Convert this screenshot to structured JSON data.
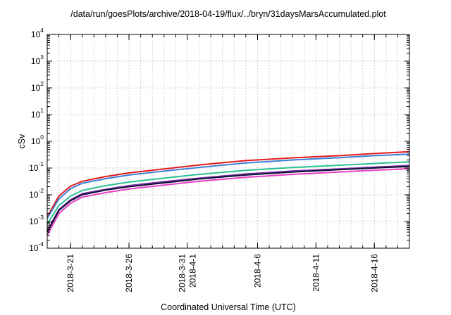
{
  "chart_data": {
    "type": "line",
    "title": "/data/run/goesPlots/archive/2018-04-19/flux/../bryn/31daysMarsAccumulated.plot",
    "xlabel": "Coordinated Universal Time (UTC)",
    "ylabel": "cSv",
    "yscale": "log",
    "ylim": [
      0.0001,
      10000
    ],
    "xlim": [
      "2018-03-19",
      "2018-04-19"
    ],
    "grid": true,
    "legend": "none",
    "y_ticks": [
      {
        "base": "10",
        "exp": "-4",
        "value": 0.0001
      },
      {
        "base": "10",
        "exp": "-3",
        "value": 0.001
      },
      {
        "base": "10",
        "exp": "-2",
        "value": 0.01
      },
      {
        "base": "10",
        "exp": "-1",
        "value": 0.1
      },
      {
        "base": "10",
        "exp": "0",
        "value": 1
      },
      {
        "base": "10",
        "exp": "1",
        "value": 10
      },
      {
        "base": "10",
        "exp": "2",
        "value": 100
      },
      {
        "base": "10",
        "exp": "3",
        "value": 1000
      },
      {
        "base": "10",
        "exp": "4",
        "value": 10000
      }
    ],
    "x_ticks": [
      {
        "date": "2018-03-21",
        "lines": [
          "2018-3-21"
        ]
      },
      {
        "date": "2018-03-26",
        "lines": [
          "2018-3-26"
        ]
      },
      {
        "date": "2018-03-31",
        "lines": [
          "2018-3-31",
          "2018-4-1"
        ]
      },
      {
        "date": "2018-04-06",
        "lines": [
          "2018-4-6"
        ]
      },
      {
        "date": "2018-04-11",
        "lines": [
          "2018-4-11"
        ]
      },
      {
        "date": "2018-04-16",
        "lines": [
          "2018-4-16"
        ]
      }
    ],
    "x": [
      "2018-03-19",
      "2018-03-20",
      "2018-03-21",
      "2018-03-22",
      "2018-03-24",
      "2018-03-26",
      "2018-03-29",
      "2018-04-01",
      "2018-04-05",
      "2018-04-09",
      "2018-04-13",
      "2018-04-16",
      "2018-04-19"
    ],
    "series": [
      {
        "color": "#e41a1c",
        "values": [
          0.0015,
          0.009,
          0.021,
          0.032,
          0.048,
          0.066,
          0.093,
          0.13,
          0.19,
          0.24,
          0.29,
          0.35,
          0.41
        ]
      },
      {
        "color": "#3a7fd5",
        "values": [
          0.0013,
          0.007,
          0.017,
          0.027,
          0.04,
          0.055,
          0.077,
          0.105,
          0.155,
          0.2,
          0.245,
          0.29,
          0.33
        ]
      },
      {
        "color": "#2bbf96",
        "values": [
          0.0008,
          0.004,
          0.009,
          0.0145,
          0.022,
          0.03,
          0.042,
          0.058,
          0.082,
          0.105,
          0.127,
          0.148,
          0.17
        ]
      },
      {
        "color": "#7a2fb0",
        "values": [
          0.00045,
          0.0028,
          0.0065,
          0.011,
          0.016,
          0.022,
          0.031,
          0.042,
          0.06,
          0.077,
          0.093,
          0.108,
          0.125
        ]
      },
      {
        "color": "#111133",
        "values": [
          0.0004,
          0.0026,
          0.006,
          0.01,
          0.015,
          0.02,
          0.028,
          0.039,
          0.055,
          0.071,
          0.087,
          0.101,
          0.115
        ]
      },
      {
        "color": "#e83ec3",
        "values": [
          0.0003,
          0.002,
          0.0048,
          0.0082,
          0.012,
          0.0165,
          0.023,
          0.032,
          0.045,
          0.058,
          0.071,
          0.083,
          0.095
        ]
      }
    ]
  }
}
